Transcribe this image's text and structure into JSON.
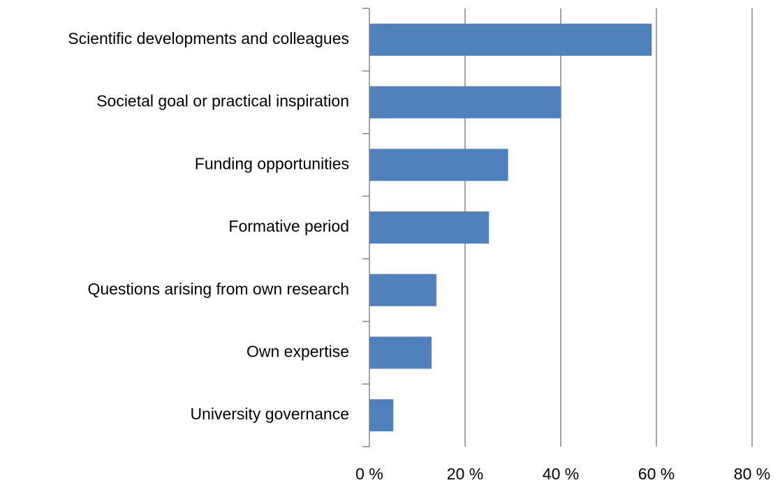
{
  "chart_data": {
    "type": "bar",
    "orientation": "horizontal",
    "categories": [
      "Scientific developments and colleagues",
      "Societal goal or practical inspiration",
      "Funding opportunities",
      "Formative period",
      "Questions arising from own research",
      "Own expertise",
      "University governance"
    ],
    "values": [
      59,
      40,
      29,
      25,
      14,
      13,
      5
    ],
    "color": "#4f81bd",
    "xlim": [
      0,
      80
    ],
    "xticks": [
      {
        "value": 0,
        "label": "0 %"
      },
      {
        "value": 20,
        "label": "20 %"
      },
      {
        "value": 40,
        "label": "40 %"
      },
      {
        "value": 60,
        "label": "60 %"
      },
      {
        "value": 80,
        "label": "80 %"
      }
    ],
    "grid": true
  }
}
